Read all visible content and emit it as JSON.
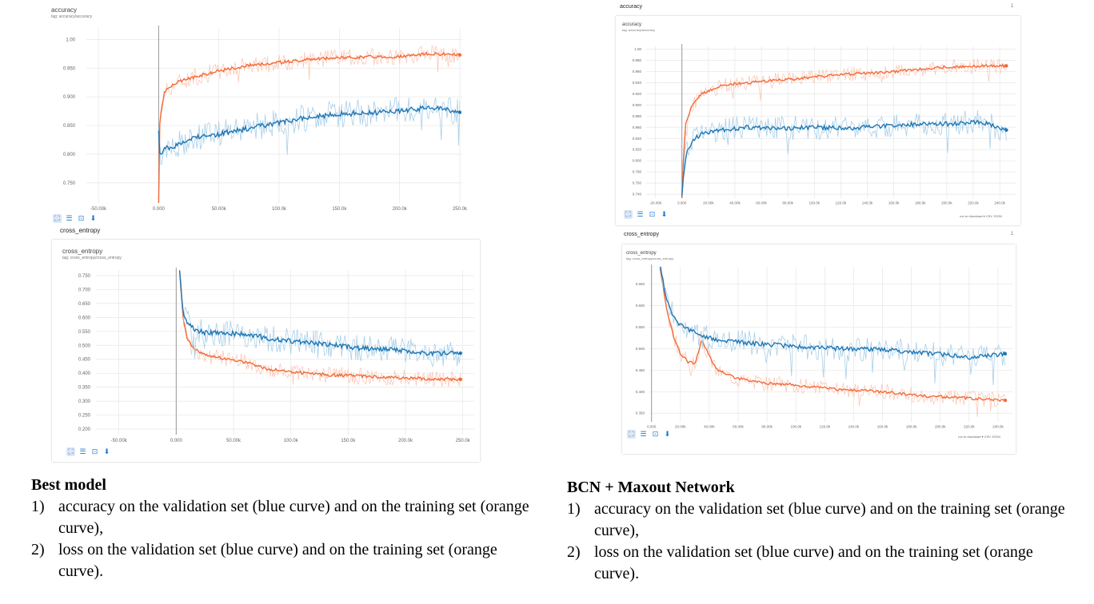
{
  "left": {
    "accuracy_chart": {
      "header": "accuracy",
      "tag": "tag: accuracy/accuracy"
    },
    "cross_entropy_section": "cross_entropy",
    "cross_entropy_chart": {
      "header": "cross_entropy",
      "tag": "tag: cross_entropy/cross_entropy"
    }
  },
  "right": {
    "accuracy_section": "accuracy",
    "accuracy_chart": {
      "header": "accuracy",
      "tag": "tag: accuracy/accuracy",
      "card_num": "1"
    },
    "download": {
      "run_label": "run to download",
      "csv": "CSV",
      "json": "JSON"
    },
    "cross_entropy_section": "cross_entropy",
    "cross_entropy_chart": {
      "header": "cross_entropy",
      "tag": "tag: cross_entropy/cross_entropy",
      "card_num": "1"
    },
    "download2": {
      "run_label": "run to download",
      "csv": "CSV",
      "json": "JSON"
    }
  },
  "captions": {
    "left": {
      "title": "Best model",
      "items": [
        {
          "num": "1)",
          "text": "accuracy on the validation set (blue curve) and on the training set (orange curve),"
        },
        {
          "num": "2)",
          "text": "loss on the validation set (blue curve) and on the training set (orange curve)."
        }
      ]
    },
    "right": {
      "title": "BCN + Maxout Network",
      "items": [
        {
          "num": "1)",
          "text": "accuracy on the validation set (blue curve) and on the training set (orange curve),"
        },
        {
          "num": "2)",
          "text": "loss on the validation set (blue curve) and on the training set (orange curve)."
        }
      ]
    }
  },
  "colors": {
    "train": "#f26b3a",
    "train_light": "#fbc9b6",
    "val": "#1f77b4",
    "val_light": "#a9cfe8",
    "grid": "#e6e6e6"
  },
  "chart_data": [
    {
      "id": "left-accuracy",
      "type": "line",
      "title": "accuracy",
      "xlabel": "",
      "ylabel": "",
      "x_ticks": [
        -50000,
        0,
        50000,
        100000,
        150000,
        200000,
        250000
      ],
      "x_tick_labels": [
        "-50.00k",
        "0.000",
        "50.00k",
        "100.0k",
        "150.0k",
        "200.0k",
        "250.0k"
      ],
      "y_ticks": [
        0.75,
        0.8,
        0.85,
        0.9,
        0.95,
        1.0
      ],
      "y_tick_labels": [
        "0.750",
        "0.800",
        "0.850",
        "0.900",
        "0.950",
        "1.00"
      ],
      "xlim": [
        -60000,
        252000
      ],
      "ylim": [
        0.715,
        1.02
      ],
      "series": [
        {
          "name": "training",
          "color": "orange",
          "x": [
            0,
            1000,
            5000,
            15000,
            30000,
            50000,
            75000,
            100000,
            125000,
            150000,
            175000,
            200000,
            225000,
            250000
          ],
          "values": [
            0.7,
            0.86,
            0.91,
            0.925,
            0.935,
            0.945,
            0.955,
            0.96,
            0.965,
            0.968,
            0.97,
            0.97,
            0.975,
            0.973
          ]
        },
        {
          "name": "validation",
          "color": "blue",
          "x": [
            0,
            1000,
            5000,
            15000,
            30000,
            50000,
            75000,
            100000,
            125000,
            150000,
            175000,
            200000,
            225000,
            250000
          ],
          "values": [
            0.84,
            0.8,
            0.81,
            0.815,
            0.83,
            0.835,
            0.845,
            0.855,
            0.865,
            0.87,
            0.872,
            0.875,
            0.882,
            0.873
          ]
        }
      ]
    },
    {
      "id": "left-cross-entropy",
      "type": "line",
      "title": "cross_entropy",
      "xlabel": "",
      "ylabel": "",
      "x_ticks": [
        -50000,
        0,
        50000,
        100000,
        150000,
        200000,
        250000
      ],
      "x_tick_labels": [
        "-50.00k",
        "0.000",
        "50.00k",
        "100.0k",
        "150.0k",
        "200.0k",
        "250.0k"
      ],
      "y_ticks": [
        0.2,
        0.25,
        0.3,
        0.35,
        0.4,
        0.45,
        0.5,
        0.55,
        0.6,
        0.65,
        0.7,
        0.75
      ],
      "y_tick_labels": [
        "0.200",
        "0.250",
        "0.300",
        "0.350",
        "0.400",
        "0.450",
        "0.500",
        "0.550",
        "0.600",
        "0.650",
        "0.700",
        "0.750"
      ],
      "xlim": [
        -70000,
        260000
      ],
      "ylim": [
        0.18,
        0.77
      ],
      "series": [
        {
          "name": "training",
          "color": "orange",
          "x": [
            3000,
            6000,
            10000,
            15000,
            25000,
            40000,
            60000,
            80000,
            100000,
            130000,
            160000,
            190000,
            220000,
            248000
          ],
          "values": [
            0.77,
            0.6,
            0.52,
            0.49,
            0.465,
            0.455,
            0.44,
            0.415,
            0.405,
            0.395,
            0.39,
            0.385,
            0.38,
            0.378
          ]
        },
        {
          "name": "validation",
          "color": "blue",
          "x": [
            3000,
            6000,
            10000,
            15000,
            25000,
            40000,
            60000,
            80000,
            100000,
            130000,
            160000,
            190000,
            220000,
            248000
          ],
          "values": [
            0.77,
            0.62,
            0.58,
            0.56,
            0.545,
            0.545,
            0.54,
            0.525,
            0.515,
            0.505,
            0.49,
            0.485,
            0.47,
            0.472
          ]
        }
      ]
    },
    {
      "id": "right-accuracy",
      "type": "line",
      "title": "accuracy",
      "xlabel": "",
      "ylabel": "",
      "x_ticks": [
        -20000,
        0,
        20000,
        40000,
        60000,
        80000,
        100000,
        120000,
        140000,
        160000,
        180000,
        200000,
        220000,
        240000
      ],
      "x_tick_labels": [
        "-20.00k",
        "0.000",
        "20.00k",
        "40.00k",
        "60.00k",
        "80.00k",
        "100.0k",
        "120.0k",
        "140.0k",
        "160.0k",
        "180.0k",
        "200.0k",
        "220.0k",
        "240.0k"
      ],
      "y_ticks": [
        0.74,
        0.76,
        0.78,
        0.8,
        0.82,
        0.84,
        0.86,
        0.88,
        0.9,
        0.92,
        0.94,
        0.96,
        0.98,
        1.0
      ],
      "y_tick_labels": [
        "0.740",
        "0.760",
        "0.780",
        "0.800",
        "0.820",
        "0.840",
        "0.860",
        "0.880",
        "0.900",
        "0.920",
        "0.940",
        "0.960",
        "0.980",
        "1.00"
      ],
      "xlim": [
        -27000,
        252000
      ],
      "ylim": [
        0.733,
        1.005
      ],
      "series": [
        {
          "name": "training",
          "color": "orange",
          "x": [
            0,
            1000,
            3000,
            8000,
            15000,
            30000,
            50000,
            75000,
            100000,
            125000,
            150000,
            175000,
            200000,
            225000,
            245000
          ],
          "values": [
            0.733,
            0.8,
            0.87,
            0.9,
            0.92,
            0.935,
            0.94,
            0.945,
            0.95,
            0.955,
            0.958,
            0.963,
            0.968,
            0.97,
            0.97
          ]
        },
        {
          "name": "validation",
          "color": "blue",
          "x": [
            0,
            1000,
            3000,
            8000,
            15000,
            30000,
            50000,
            75000,
            100000,
            125000,
            150000,
            175000,
            200000,
            225000,
            245000
          ],
          "values": [
            0.733,
            0.77,
            0.81,
            0.835,
            0.85,
            0.855,
            0.86,
            0.858,
            0.86,
            0.858,
            0.862,
            0.865,
            0.866,
            0.87,
            0.855
          ]
        }
      ]
    },
    {
      "id": "right-cross-entropy",
      "type": "line",
      "title": "cross_entropy",
      "xlabel": "",
      "ylabel": "",
      "x_ticks": [
        0,
        20000,
        40000,
        60000,
        80000,
        100000,
        120000,
        140000,
        160000,
        180000,
        200000,
        220000,
        240000
      ],
      "x_tick_labels": [
        "0.000",
        "20.00k",
        "40.00k",
        "60.00k",
        "80.00k",
        "100.0k",
        "120.0k",
        "140.0k",
        "160.0k",
        "180.0k",
        "200.0k",
        "220.0k",
        "240.0k"
      ],
      "y_ticks": [
        0.35,
        0.4,
        0.45,
        0.5,
        0.55,
        0.6,
        0.65
      ],
      "y_tick_labels": [
        "0.350",
        "0.400",
        "0.450",
        "0.500",
        "0.550",
        "0.600",
        "0.650"
      ],
      "xlim": [
        -1500,
        250000
      ],
      "ylim": [
        0.33,
        0.69
      ],
      "series": [
        {
          "name": "training",
          "color": "orange",
          "x": [
            6000,
            10000,
            15000,
            20000,
            25000,
            30000,
            35000,
            45000,
            60000,
            80000,
            100000,
            130000,
            160000,
            190000,
            220000,
            245000
          ],
          "values": [
            0.69,
            0.6,
            0.53,
            0.49,
            0.47,
            0.465,
            0.52,
            0.45,
            0.43,
            0.42,
            0.415,
            0.405,
            0.4,
            0.39,
            0.385,
            0.38
          ]
        },
        {
          "name": "validation",
          "color": "blue",
          "x": [
            6000,
            10000,
            15000,
            20000,
            25000,
            30000,
            35000,
            45000,
            60000,
            80000,
            100000,
            130000,
            160000,
            190000,
            220000,
            245000
          ],
          "values": [
            0.69,
            0.62,
            0.575,
            0.555,
            0.545,
            0.54,
            0.53,
            0.52,
            0.515,
            0.51,
            0.505,
            0.5,
            0.498,
            0.49,
            0.48,
            0.488
          ]
        }
      ]
    }
  ]
}
